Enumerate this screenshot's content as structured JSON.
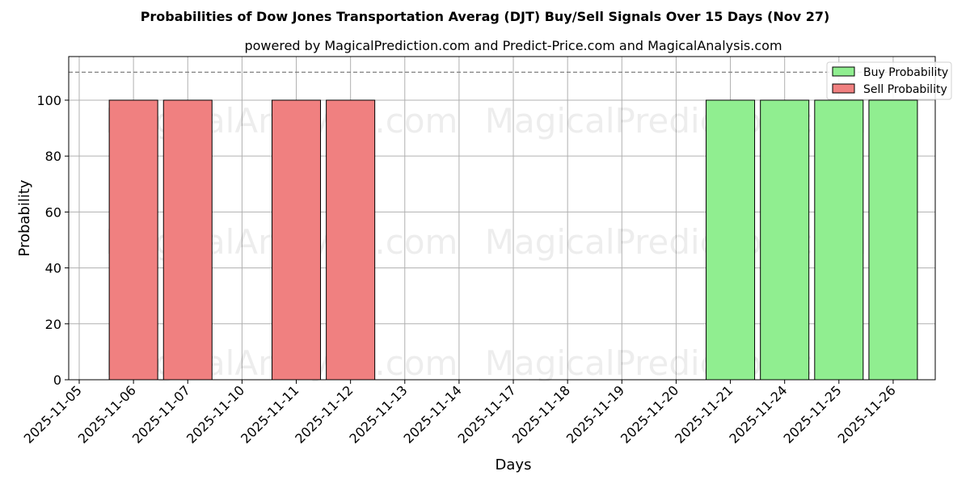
{
  "chart_data": {
    "type": "bar",
    "title": "Probabilities of Dow Jones Transportation Averag (DJT) Buy/Sell Signals Over 15 Days (Nov 27)",
    "subtitle": "powered by MagicalPrediction.com and Predict-Price.com and MagicalAnalysis.com",
    "xlabel": "Days",
    "ylabel": "Probability",
    "ylim": [
      0,
      115.6
    ],
    "yticks": [
      0,
      20,
      40,
      60,
      80,
      100
    ],
    "reference_line": 110,
    "grid": true,
    "legend_position": "upper right",
    "categories": [
      "2025-11-05",
      "2025-11-06",
      "2025-11-07",
      "2025-11-10",
      "2025-11-11",
      "2025-11-12",
      "2025-11-13",
      "2025-11-14",
      "2025-11-17",
      "2025-11-18",
      "2025-11-19",
      "2025-11-20",
      "2025-11-21",
      "2025-11-24",
      "2025-11-25",
      "2025-11-26"
    ],
    "series": [
      {
        "name": "Buy Probability",
        "color": "#90ee90",
        "values": [
          0,
          0,
          0,
          0,
          0,
          0,
          0,
          0,
          0,
          0,
          0,
          0,
          100,
          100,
          100,
          100
        ]
      },
      {
        "name": "Sell Probability",
        "color": "#f08080",
        "values": [
          0,
          100,
          100,
          0,
          100,
          100,
          0,
          0,
          0,
          0,
          0,
          0,
          0,
          0,
          0,
          0
        ]
      }
    ],
    "watermarks": [
      "MagicalAnalysis.com",
      "MagicalPrediction.com"
    ]
  }
}
